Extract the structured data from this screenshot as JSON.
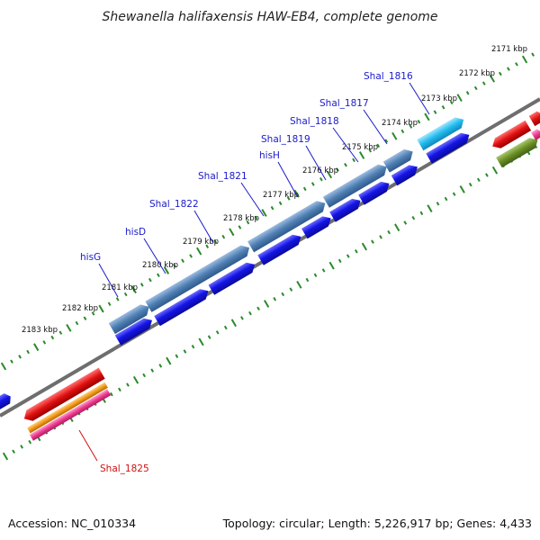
{
  "title": "Shewanella halifaxensis HAW-EB4, complete genome",
  "footer": {
    "accession": "Accession: NC_010334",
    "summary": "Topology: circular; Length: 5,226,917 bp; Genes: 4,433"
  },
  "tick_labels": [
    "2171 kbp",
    "2172 kbp",
    "2173 kbp",
    "2174 kbp",
    "2175 kbp",
    "2176 kbp",
    "2177 kbp",
    "2178 kbp",
    "2179 kbp",
    "2180 kbp",
    "2181 kbp",
    "2182 kbp",
    "2183 kbp"
  ],
  "gene_labels": [
    {
      "name": "Shal_1816",
      "color": "#1a1acc"
    },
    {
      "name": "Shal_1817",
      "color": "#1a1acc"
    },
    {
      "name": "Shal_1818",
      "color": "#1a1acc"
    },
    {
      "name": "Shal_1819",
      "color": "#1a1acc"
    },
    {
      "name": "hisH",
      "color": "#1a1acc"
    },
    {
      "name": "Shal_1821",
      "color": "#1a1acc"
    },
    {
      "name": "Shal_1822",
      "color": "#1a1acc"
    },
    {
      "name": "hisD",
      "color": "#1a1acc"
    },
    {
      "name": "hisG",
      "color": "#1a1acc"
    },
    {
      "name": "Shal_1825",
      "color": "#d01010"
    }
  ],
  "colors": {
    "backbone": "#7a7a7a",
    "ticks": "#1f7a1f",
    "operon": "#4f7fb3",
    "cds_blue": "#1414e6",
    "cds_cyan": "#22bbee",
    "red": "#e01010",
    "orange": "#f29a1a",
    "pink": "#ee3b8e",
    "olive": "#6b8e23"
  }
}
